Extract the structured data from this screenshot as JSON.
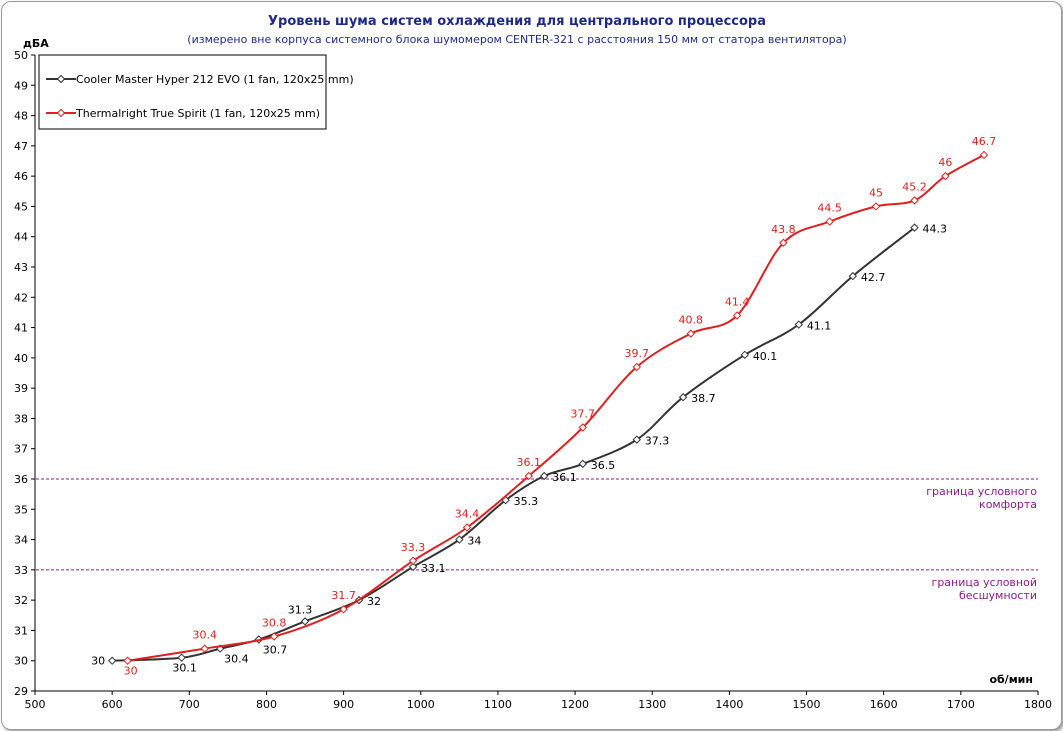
{
  "chart_data": {
    "type": "line",
    "title": "Уровень шума систем охлаждения для центрального  процессора",
    "subtitle": "(измерено вне корпуса системного блока шумомером CENTER-321 с расстояния 150  мм от статора вентилятора)",
    "xlabel": "об/мин",
    "ylabel": "дБА",
    "xlim": [
      500,
      1800
    ],
    "ylim": [
      29,
      50
    ],
    "x_ticks": [
      500,
      600,
      700,
      800,
      900,
      1000,
      1100,
      1200,
      1300,
      1400,
      1500,
      1600,
      1700,
      1800
    ],
    "y_ticks": [
      29,
      30,
      31,
      32,
      33,
      34,
      35,
      36,
      37,
      38,
      39,
      40,
      41,
      42,
      43,
      44,
      45,
      46,
      47,
      48,
      49,
      50
    ],
    "x_tick_labels": [
      "500",
      "600",
      "700",
      "800",
      "900",
      "1000",
      "1100",
      "1200",
      "1300",
      "1400",
      "1500",
      "1600",
      "1700",
      "1800"
    ],
    "y_tick_labels": [
      "29",
      "30",
      "31",
      "32",
      "33",
      "34",
      "35",
      "36",
      "37",
      "38",
      "39",
      "40",
      "41",
      "42",
      "43",
      "44",
      "45",
      "46",
      "47",
      "48",
      "49",
      "50"
    ],
    "legend_position": "top-left",
    "grid": false,
    "series": [
      {
        "name": "Cooler Master Hyper 212 EVO (1 fan, 120x25 mm)",
        "color": "#333333",
        "label_position": "mixed",
        "points": [
          {
            "x": 600,
            "y": 30,
            "label": "30",
            "pos": "left"
          },
          {
            "x": 690,
            "y": 30.1,
            "label": "30.1",
            "pos": "below"
          },
          {
            "x": 740,
            "y": 30.4,
            "label": "30.4",
            "pos": "below-right"
          },
          {
            "x": 790,
            "y": 30.7,
            "label": "30.7",
            "pos": "below-right"
          },
          {
            "x": 850,
            "y": 31.3,
            "label": "31.3",
            "pos": "above-left"
          },
          {
            "x": 920,
            "y": 32,
            "label": "32",
            "pos": "right"
          },
          {
            "x": 990,
            "y": 33.1,
            "label": "33.1",
            "pos": "right"
          },
          {
            "x": 1050,
            "y": 34,
            "label": "34",
            "pos": "right"
          },
          {
            "x": 1110,
            "y": 35.3,
            "label": "35.3",
            "pos": "right"
          },
          {
            "x": 1160,
            "y": 36.1,
            "label": "36.1",
            "pos": "right"
          },
          {
            "x": 1210,
            "y": 36.5,
            "label": "36.5",
            "pos": "right"
          },
          {
            "x": 1280,
            "y": 37.3,
            "label": "37.3",
            "pos": "right"
          },
          {
            "x": 1340,
            "y": 38.7,
            "label": "38.7",
            "pos": "right"
          },
          {
            "x": 1420,
            "y": 40.1,
            "label": "40.1",
            "pos": "right"
          },
          {
            "x": 1490,
            "y": 41.1,
            "label": "41.1",
            "pos": "right"
          },
          {
            "x": 1560,
            "y": 42.7,
            "label": "42.7",
            "pos": "right"
          },
          {
            "x": 1640,
            "y": 44.3,
            "label": "44.3",
            "pos": "right"
          }
        ]
      },
      {
        "name": "Thermalright True Spirit (1 fan, 120x25 mm)",
        "color": "#e02020",
        "points": [
          {
            "x": 620,
            "y": 30,
            "label": "30",
            "pos": "below"
          },
          {
            "x": 720,
            "y": 30.4,
            "label": "30.4",
            "pos": "above"
          },
          {
            "x": 810,
            "y": 30.8,
            "label": "30.8",
            "pos": "above"
          },
          {
            "x": 900,
            "y": 31.7,
            "label": "31.7",
            "pos": "above"
          },
          {
            "x": 990,
            "y": 33.3,
            "label": "33.3",
            "pos": "above"
          },
          {
            "x": 1060,
            "y": 34.4,
            "label": "34.4",
            "pos": "above"
          },
          {
            "x": 1140,
            "y": 36.1,
            "label": "36.1",
            "pos": "above"
          },
          {
            "x": 1210,
            "y": 37.7,
            "label": "37.7",
            "pos": "above"
          },
          {
            "x": 1280,
            "y": 39.7,
            "label": "39.7",
            "pos": "above"
          },
          {
            "x": 1350,
            "y": 40.8,
            "label": "40.8",
            "pos": "above"
          },
          {
            "x": 1410,
            "y": 41.4,
            "label": "41.4",
            "pos": "above"
          },
          {
            "x": 1470,
            "y": 43.8,
            "label": "43.8",
            "pos": "above"
          },
          {
            "x": 1530,
            "y": 44.5,
            "label": "44.5",
            "pos": "above"
          },
          {
            "x": 1590,
            "y": 45,
            "label": "45",
            "pos": "above"
          },
          {
            "x": 1640,
            "y": 45.2,
            "label": "45.2",
            "pos": "above"
          },
          {
            "x": 1680,
            "y": 46,
            "label": "46",
            "pos": "above"
          },
          {
            "x": 1730,
            "y": 46.7,
            "label": "46.7",
            "pos": "above"
          }
        ]
      }
    ],
    "reference_lines": [
      {
        "y": 36,
        "color": "#8b1a8b",
        "label_lines": [
          "граница условного",
          "комфорта"
        ]
      },
      {
        "y": 33,
        "color": "#8b1a8b",
        "label_lines": [
          "граница условной",
          "бесшумности"
        ]
      }
    ]
  }
}
